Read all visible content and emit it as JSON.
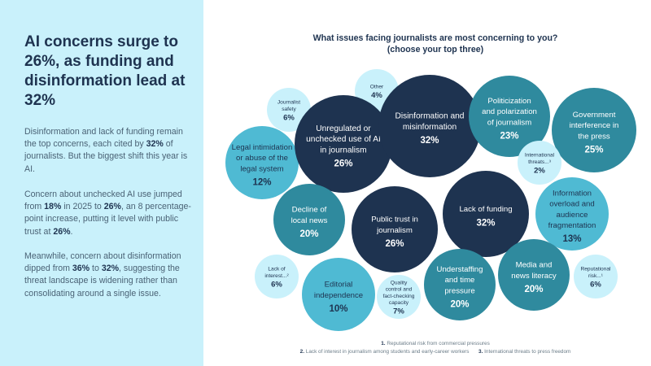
{
  "left_panel": {
    "headline": "AI concerns surge to 26%, as funding and disinformation lead at 32%",
    "paragraphs": [
      [
        {
          "t": "Disinformation and lack of funding remain the top concerns, each cited by "
        },
        {
          "t": "32%",
          "b": true
        },
        {
          "t": " of journalists. But the biggest shift this year is AI."
        }
      ],
      [
        {
          "t": "Concern about unchecked AI use jumped from "
        },
        {
          "t": "18%",
          "b": true
        },
        {
          "t": " in 2025 to "
        },
        {
          "t": "26%",
          "b": true
        },
        {
          "t": ", an 8 percentage-point increase, putting it level with public trust at "
        },
        {
          "t": "26%",
          "b": true
        },
        {
          "t": "."
        }
      ],
      [
        {
          "t": "Meanwhile, concern about disinformation dipped from "
        },
        {
          "t": "36%",
          "b": true
        },
        {
          "t": " to "
        },
        {
          "t": "32%",
          "b": true
        },
        {
          "t": ", suggesting the threat landscape is widening rather than consolidating around a single issue."
        }
      ]
    ]
  },
  "colors": {
    "panel_bg": "#c9f1fb",
    "navy": "#1e3350",
    "teal": "#2f8a9e",
    "cyan": "#4fbad3",
    "pale": "#c9f1fb",
    "text_dark": "#1e3350",
    "text_light": "#ffffff"
  },
  "chart_data": {
    "type": "bubble",
    "title": "What issues facing journalists are most concerning to you?",
    "subtitle": "(choose your top three)",
    "unit": "%",
    "points": [
      {
        "label": "Journalist safety",
        "lines": [
          "Journalist",
          "safety"
        ],
        "value": 6,
        "tier": "pale"
      },
      {
        "label": "Other",
        "lines": [
          "Other"
        ],
        "value": 4,
        "tier": "pale"
      },
      {
        "label": "Legal intimidation or abuse of the legal system",
        "lines": [
          "Legal intimidation",
          "or abuse of the",
          "legal system"
        ],
        "value": 12,
        "tier": "cyan"
      },
      {
        "label": "Unregulated or unchecked use of AI in journalism",
        "lines": [
          "Unregulated or",
          "unchecked use of AI",
          "in journalism"
        ],
        "value": 26,
        "tier": "navy"
      },
      {
        "label": "Disinformation and misinformation",
        "lines": [
          "Disinformation and",
          "misinformation"
        ],
        "value": 32,
        "tier": "navy"
      },
      {
        "label": "Politicization and polarization of journalism",
        "lines": [
          "Politicization",
          "and polarization",
          "of journalism"
        ],
        "value": 23,
        "tier": "teal"
      },
      {
        "label": "Government interference in the press",
        "lines": [
          "Government",
          "interference in",
          "the press"
        ],
        "value": 25,
        "tier": "teal"
      },
      {
        "label": "International threats...",
        "lines": [
          "International",
          "threats...³"
        ],
        "value": 2,
        "tier": "pale"
      },
      {
        "label": "Lack of funding",
        "lines": [
          "Lack of funding"
        ],
        "value": 32,
        "tier": "navy"
      },
      {
        "label": "Information overload and audience fragmentation",
        "lines": [
          "Information",
          "overload and",
          "audience",
          "fragmentation"
        ],
        "value": 13,
        "tier": "cyan"
      },
      {
        "label": "Decline of local news",
        "lines": [
          "Decline of",
          "local news"
        ],
        "value": 20,
        "tier": "teal"
      },
      {
        "label": "Public trust in journalism",
        "lines": [
          "Public trust in",
          "journalism"
        ],
        "value": 26,
        "tier": "navy"
      },
      {
        "label": "Lack of interest...",
        "lines": [
          "Lack of",
          "interest...²"
        ],
        "value": 6,
        "tier": "pale"
      },
      {
        "label": "Editorial independence",
        "lines": [
          "Editorial",
          "independence"
        ],
        "value": 10,
        "tier": "cyan"
      },
      {
        "label": "Quality control and fact-checking capacity",
        "lines": [
          "Quality",
          "control and",
          "fact-checking",
          "capacity"
        ],
        "value": 7,
        "tier": "pale"
      },
      {
        "label": "Understaffing and time pressure",
        "lines": [
          "Understaffing",
          "and time",
          "pressure"
        ],
        "value": 20,
        "tier": "teal"
      },
      {
        "label": "Media and news literacy",
        "lines": [
          "Media and",
          "news literacy"
        ],
        "value": 20,
        "tier": "teal"
      },
      {
        "label": "Reputational risk...",
        "lines": [
          "Reputational",
          "risk...¹"
        ],
        "value": 6,
        "tier": "pale"
      }
    ]
  },
  "footnotes": [
    {
      "num": "1.",
      "text": "Reputational risk from commercial pressures"
    },
    {
      "num": "2.",
      "text": "Lack of interest in journalism among students and early-career workers"
    },
    {
      "num": "3.",
      "text": "International threats to press freedom"
    }
  ]
}
